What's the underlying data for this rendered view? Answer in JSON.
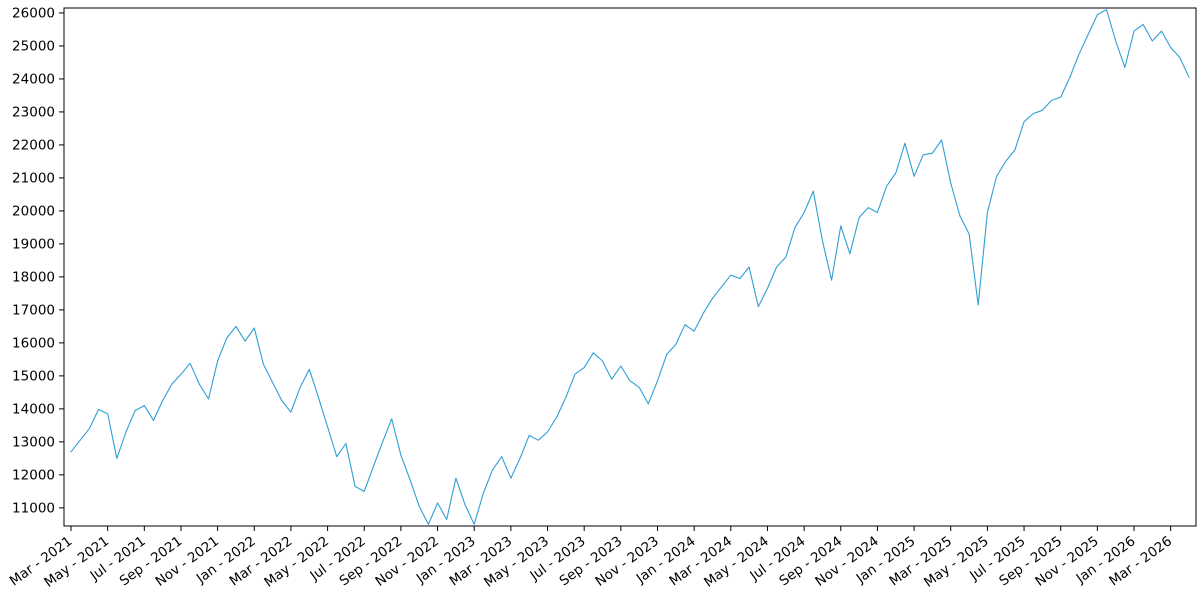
{
  "chart_data": {
    "type": "line",
    "title": "",
    "legend": "none",
    "grid": "off",
    "background_color": "#ffffff",
    "axis_color": "#000000",
    "line_color": "#2f9fd4",
    "ylim": [
      10450,
      26150
    ],
    "y_ticks": [
      11000,
      12000,
      13000,
      14000,
      15000,
      16000,
      17000,
      18000,
      19000,
      20000,
      21000,
      22000,
      23000,
      24000,
      25000,
      26000
    ],
    "x_tick_labels": [
      "Mar - 2021",
      "May - 2021",
      "Jul - 2021",
      "Sep - 2021",
      "Nov - 2021",
      "Jan - 2022",
      "Mar - 2022",
      "May - 2022",
      "Jul - 2022",
      "Sep - 2022",
      "Nov - 2022",
      "Jan - 2023",
      "Mar - 2023",
      "May - 2023",
      "Jul - 2023",
      "Sep - 2023",
      "Nov - 2023",
      "Jan - 2024",
      "Mar - 2024",
      "May - 2024",
      "Jul - 2024",
      "Sep - 2024",
      "Nov - 2024",
      "Jan - 2025",
      "Mar - 2025",
      "May - 2025",
      "Jul - 2025",
      "Sep - 2025",
      "Nov - 2025",
      "Jan - 2026",
      "Mar - 2026"
    ],
    "x_tick_point_indices": [
      0,
      4,
      8,
      12,
      16,
      20,
      24,
      28,
      32,
      36,
      40,
      44,
      48,
      52,
      56,
      60,
      64,
      68,
      72,
      76,
      80,
      84,
      88,
      92,
      96,
      100,
      104,
      108,
      112,
      116,
      120
    ],
    "sampling": "semi-monthly estimates read from plot, Mar 2021 through early Apr 2026",
    "values": [
      12700,
      13050,
      13400,
      13980,
      13850,
      12500,
      13300,
      13950,
      14100,
      13650,
      14250,
      14750,
      15050,
      15380,
      14750,
      14300,
      15450,
      16150,
      16500,
      16050,
      16450,
      15350,
      14800,
      14250,
      13900,
      14650,
      15200,
      14350,
      13450,
      12550,
      12950,
      11650,
      11500,
      12250,
      13000,
      13700,
      12600,
      11850,
      11050,
      10500,
      11150,
      10650,
      11900,
      11100,
      10500,
      11450,
      12150,
      12550,
      11900,
      12500,
      13200,
      13050,
      13300,
      13750,
      14350,
      15050,
      15250,
      15700,
      15450,
      14900,
      15300,
      14850,
      14650,
      14150,
      14850,
      15650,
      15950,
      16550,
      16350,
      16900,
      17350,
      17700,
      18050,
      17950,
      18300,
      17100,
      17650,
      18300,
      18600,
      19500,
      19950,
      20600,
      19100,
      17900,
      19550,
      18700,
      19800,
      20100,
      19950,
      20750,
      21150,
      22050,
      21050,
      21700,
      21750,
      22150,
      20850,
      19850,
      19300,
      17150,
      19950,
      21050,
      21500,
      21850,
      22700,
      22950,
      23050,
      23350,
      23450,
      24050,
      24750,
      25350,
      25950,
      26100,
      25150,
      24350,
      25450,
      25650,
      25150,
      25450,
      24950,
      24650,
      24050
    ]
  }
}
